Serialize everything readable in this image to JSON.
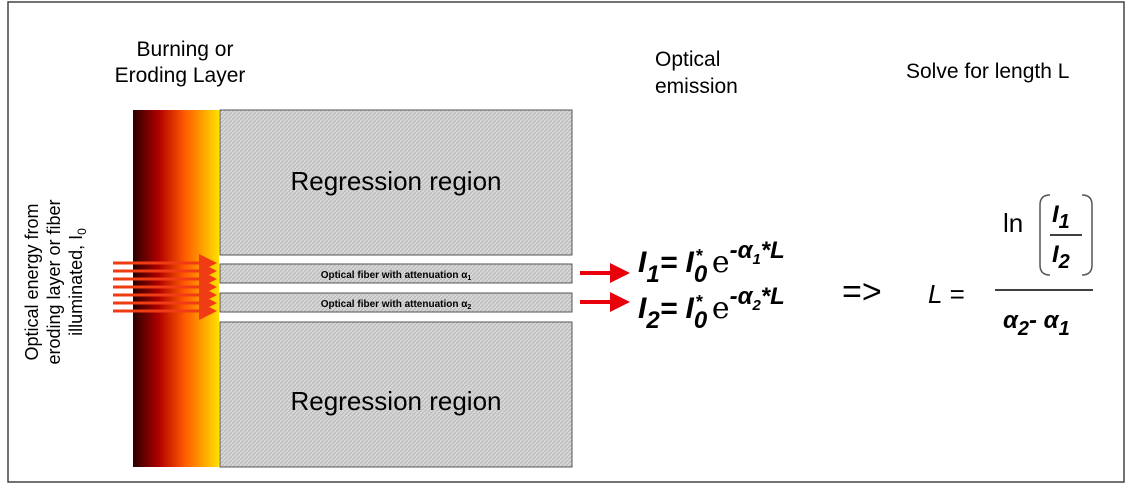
{
  "layer_label": [
    "Burning or",
    "Eroding Layer"
  ],
  "emission_label": [
    "Optical",
    "emission"
  ],
  "solve_label": "Solve for length L",
  "side_label": {
    "lines": [
      "Optical energy from",
      "eroding layer or fiber",
      "illuminated, I"
    ],
    "sub": "0"
  },
  "regions": [
    "Regression region",
    "Regression region"
  ],
  "fibers": [
    {
      "text": "Optical fiber with attenuation  α",
      "sub": "1"
    },
    {
      "text": "Optical fiber with attenuation  α",
      "sub": "2"
    }
  ],
  "equations": [
    {
      "lhs": "I",
      "lhs_sub": "1",
      "mid": "= I",
      "i0_sub": "0",
      "star": "*",
      "e": " e",
      "exp": "-α",
      "exp_sub": "1",
      "tail": "*L"
    },
    {
      "lhs": "I",
      "lhs_sub": "2",
      "mid": "= I",
      "i0_sub": "0",
      "star": "*",
      "e": " e",
      "exp": "-α",
      "exp_sub": "2",
      "tail": "*L"
    }
  ],
  "implies": "=>",
  "solution": {
    "lhs": "L =",
    "ln": "ln",
    "num": {
      "sym": "I",
      "sub": "1"
    },
    "den": {
      "sym": "I",
      "sub": "2"
    },
    "denominator": {
      "a": "α",
      "a_sub": "2",
      "minus": "- α",
      "b_sub": "1"
    }
  }
}
